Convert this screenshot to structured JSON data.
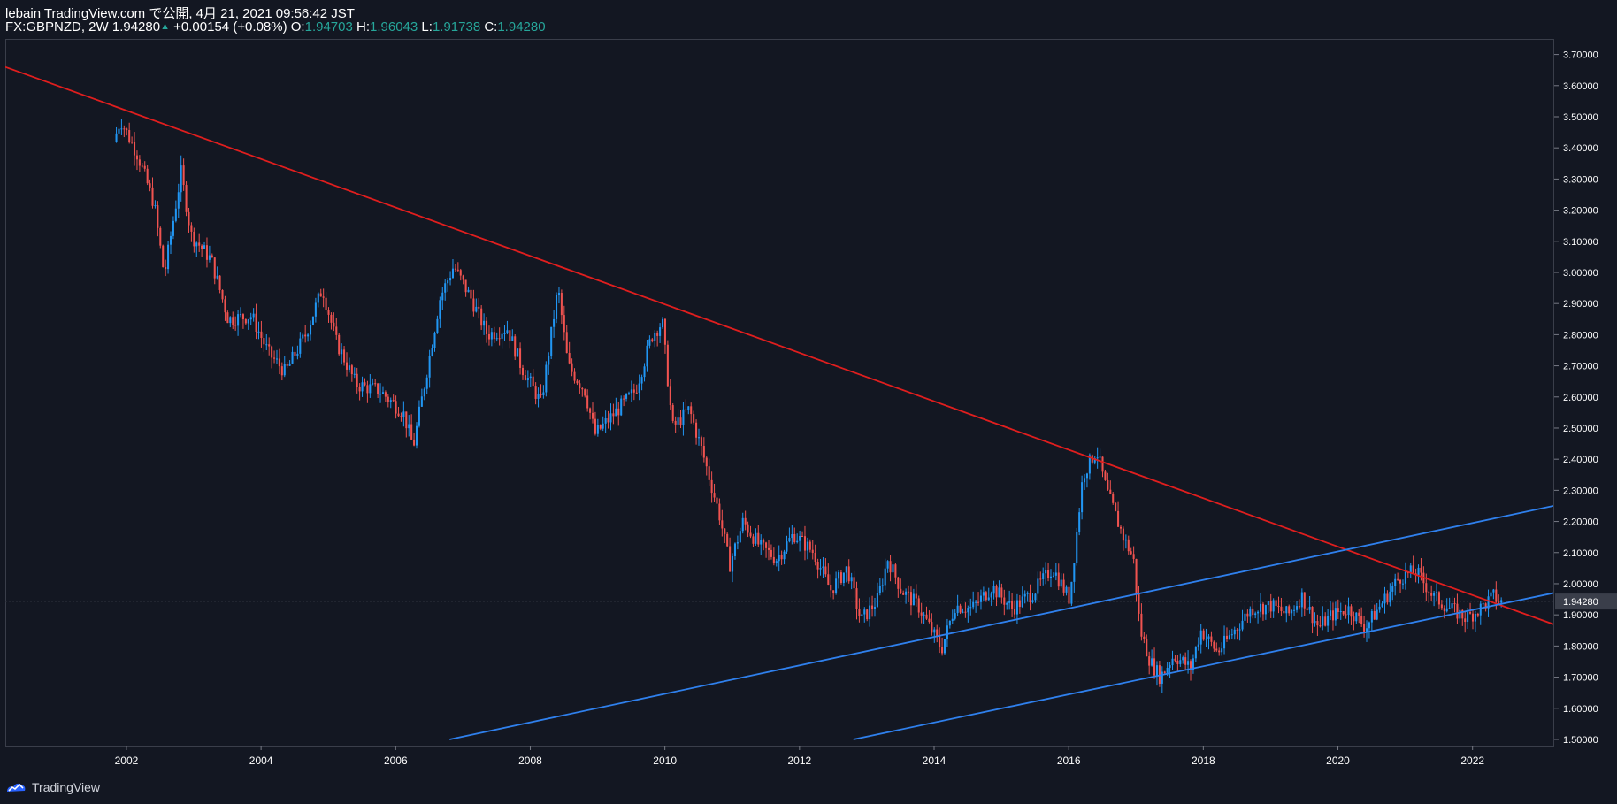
{
  "header": {
    "publish_line": "lebain TradingView.com で公開, 4月 21, 2021 09:56:42 JST",
    "symbol": "FX:GBPNZD, 2W",
    "last": "1.94280",
    "change": "+0.00154 (+0.08%)",
    "open_label": "O:",
    "open": "1.94703",
    "high_label": "H:",
    "high": "1.96043",
    "low_label": "L:",
    "low": "1.91738",
    "close_label": "C:",
    "close": "1.94280"
  },
  "footer": {
    "logo_text": "TradingView",
    "logo_icon": "tradingview-logo-icon"
  },
  "colors": {
    "background": "#131722",
    "up": "#2196f3",
    "down": "#f05350",
    "resistance_line": "#e01e1e",
    "channel_line": "#2f80ed",
    "axis_text": "#ffffff",
    "price_tag_bg": "#3a3e4a"
  },
  "chart_data": {
    "type": "candlestick",
    "symbol": "FX:GBPNZD",
    "interval": "2W",
    "last_price_label": "1.94280",
    "x_range": [
      2000.2,
      2023.2
    ],
    "ylim": [
      1.48,
      3.75
    ],
    "y_ticks": [
      "1.50000",
      "1.60000",
      "1.70000",
      "1.80000",
      "1.90000",
      "2.00000",
      "2.10000",
      "2.20000",
      "2.30000",
      "2.40000",
      "2.50000",
      "2.60000",
      "2.70000",
      "2.80000",
      "2.90000",
      "3.00000",
      "3.10000",
      "3.20000",
      "3.30000",
      "3.40000",
      "3.50000",
      "3.60000",
      "3.70000"
    ],
    "x_ticks": [
      "2002",
      "2004",
      "2006",
      "2008",
      "2010",
      "2012",
      "2014",
      "2016",
      "2018",
      "2020",
      "2022"
    ],
    "close_path": [
      [
        2001.85,
        3.42
      ],
      [
        2001.95,
        3.49
      ],
      [
        2002.2,
        3.38
      ],
      [
        2002.45,
        3.22
      ],
      [
        2002.6,
        2.99
      ],
      [
        2002.85,
        3.32
      ],
      [
        2003.0,
        3.12
      ],
      [
        2003.3,
        3.04
      ],
      [
        2003.55,
        2.85
      ],
      [
        2003.9,
        2.86
      ],
      [
        2004.15,
        2.74
      ],
      [
        2004.4,
        2.68
      ],
      [
        2004.7,
        2.8
      ],
      [
        2004.95,
        2.95
      ],
      [
        2005.15,
        2.78
      ],
      [
        2005.45,
        2.64
      ],
      [
        2005.8,
        2.62
      ],
      [
        2006.15,
        2.55
      ],
      [
        2006.3,
        2.44
      ],
      [
        2006.45,
        2.62
      ],
      [
        2006.7,
        2.92
      ],
      [
        2006.9,
        3.02
      ],
      [
        2007.15,
        2.92
      ],
      [
        2007.4,
        2.8
      ],
      [
        2007.7,
        2.82
      ],
      [
        2007.9,
        2.7
      ],
      [
        2008.2,
        2.58
      ],
      [
        2008.45,
        2.95
      ],
      [
        2008.6,
        2.7
      ],
      [
        2008.85,
        2.62
      ],
      [
        2009.0,
        2.48
      ],
      [
        2009.3,
        2.55
      ],
      [
        2009.6,
        2.62
      ],
      [
        2009.85,
        2.8
      ],
      [
        2010.0,
        2.84
      ],
      [
        2010.15,
        2.5
      ],
      [
        2010.4,
        2.56
      ],
      [
        2010.6,
        2.42
      ],
      [
        2010.85,
        2.22
      ],
      [
        2011.0,
        2.06
      ],
      [
        2011.2,
        2.2
      ],
      [
        2011.45,
        2.12
      ],
      [
        2011.7,
        2.08
      ],
      [
        2011.95,
        2.16
      ],
      [
        2012.25,
        2.1
      ],
      [
        2012.5,
        1.98
      ],
      [
        2012.75,
        2.05
      ],
      [
        2012.95,
        1.88
      ],
      [
        2013.2,
        1.95
      ],
      [
        2013.35,
        2.08
      ],
      [
        2013.55,
        1.98
      ],
      [
        2013.8,
        1.93
      ],
      [
        2014.0,
        1.85
      ],
      [
        2014.15,
        1.79
      ],
      [
        2014.35,
        1.93
      ],
      [
        2014.6,
        1.92
      ],
      [
        2014.9,
        1.99
      ],
      [
        2015.2,
        1.92
      ],
      [
        2015.5,
        1.97
      ],
      [
        2015.8,
        2.05
      ],
      [
        2016.05,
        1.95
      ],
      [
        2016.25,
        2.35
      ],
      [
        2016.45,
        2.43
      ],
      [
        2016.6,
        2.3
      ],
      [
        2016.85,
        2.15
      ],
      [
        2017.0,
        2.08
      ],
      [
        2017.1,
        1.85
      ],
      [
        2017.25,
        1.75
      ],
      [
        2017.4,
        1.7
      ],
      [
        2017.6,
        1.77
      ],
      [
        2017.85,
        1.73
      ],
      [
        2018.0,
        1.85
      ],
      [
        2018.25,
        1.78
      ],
      [
        2018.5,
        1.85
      ],
      [
        2018.75,
        1.92
      ],
      [
        2019.05,
        1.93
      ],
      [
        2019.3,
        1.9
      ],
      [
        2019.5,
        1.96
      ],
      [
        2019.75,
        1.86
      ],
      [
        2019.95,
        1.9
      ],
      [
        2020.2,
        1.92
      ],
      [
        2020.45,
        1.86
      ],
      [
        2020.7,
        1.94
      ],
      [
        2020.95,
        2.02
      ],
      [
        2021.2,
        2.04
      ],
      [
        2021.45,
        1.96
      ],
      [
        2021.7,
        1.92
      ],
      [
        2021.95,
        1.89
      ],
      [
        2022.15,
        1.92
      ],
      [
        2022.35,
        1.96
      ],
      [
        2022.45,
        1.94
      ]
    ],
    "trendlines": [
      {
        "name": "descending-resistance",
        "color": "#e01e1e",
        "from": [
          2000.2,
          3.66
        ],
        "to": [
          2023.2,
          1.87
        ]
      },
      {
        "name": "channel-upper",
        "color": "#2f80ed",
        "from": [
          2006.8,
          1.5
        ],
        "to": [
          2023.2,
          2.25
        ]
      },
      {
        "name": "channel-lower",
        "color": "#2f80ed",
        "from": [
          2012.8,
          1.5
        ],
        "to": [
          2023.2,
          1.97
        ]
      }
    ]
  }
}
